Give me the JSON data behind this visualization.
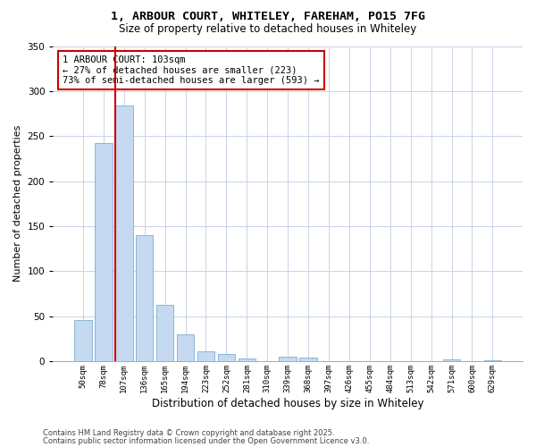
{
  "title_line1": "1, ARBOUR COURT, WHITELEY, FAREHAM, PO15 7FG",
  "title_line2": "Size of property relative to detached houses in Whiteley",
  "xlabel": "Distribution of detached houses by size in Whiteley",
  "ylabel": "Number of detached properties",
  "categories": [
    "50sqm",
    "78sqm",
    "107sqm",
    "136sqm",
    "165sqm",
    "194sqm",
    "223sqm",
    "252sqm",
    "281sqm",
    "310sqm",
    "339sqm",
    "368sqm",
    "397sqm",
    "426sqm",
    "455sqm",
    "484sqm",
    "513sqm",
    "542sqm",
    "571sqm",
    "600sqm",
    "629sqm"
  ],
  "values": [
    46,
    242,
    284,
    140,
    62,
    30,
    11,
    8,
    3,
    0,
    5,
    4,
    0,
    0,
    0,
    0,
    0,
    0,
    2,
    0,
    1
  ],
  "bar_color": "#c5d9f0",
  "bar_edgecolor": "#7aafd4",
  "red_line_index": 2,
  "annotation_text": "1 ARBOUR COURT: 103sqm\n← 27% of detached houses are smaller (223)\n73% of semi-detached houses are larger (593) →",
  "annotation_box_color": "#ffffff",
  "annotation_box_edgecolor": "#cc0000",
  "red_line_color": "#cc0000",
  "ylim": [
    0,
    350
  ],
  "yticks": [
    0,
    50,
    100,
    150,
    200,
    250,
    300,
    350
  ],
  "footer_line1": "Contains HM Land Registry data © Crown copyright and database right 2025.",
  "footer_line2": "Contains public sector information licensed under the Open Government Licence v3.0.",
  "background_color": "#ffffff",
  "grid_color": "#c8d4e8"
}
